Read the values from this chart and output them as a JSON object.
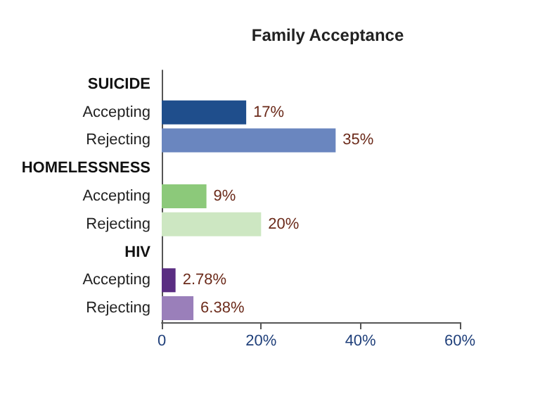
{
  "chart_data": {
    "type": "bar",
    "orientation": "horizontal",
    "title": "Family Acceptance",
    "categories": [
      "SUICIDE",
      "Accepting",
      "Rejecting",
      "HOMELESSNESS",
      "Accepting",
      "Rejecting",
      "HIV",
      "Accepting",
      "Rejecting"
    ],
    "values": [
      null,
      17,
      35,
      null,
      9,
      20,
      null,
      2.78,
      6.38
    ],
    "colors": [
      null,
      "#1f4e8c",
      "#6a86bf",
      null,
      "#8cc97a",
      "#cde7c2",
      null,
      "#5a2d82",
      "#9a7fba"
    ],
    "value_labels": [
      null,
      "17%",
      "35%",
      null,
      "9%",
      "20%",
      null,
      "2.78%",
      "6.38%"
    ],
    "xlim": [
      0,
      60
    ],
    "xticks": [
      0,
      {
        "value": 20,
        "label": "20%"
      },
      {
        "value": 40,
        "label": "40%"
      },
      {
        "value": 60,
        "label": "60%"
      }
    ],
    "grid": false
  }
}
